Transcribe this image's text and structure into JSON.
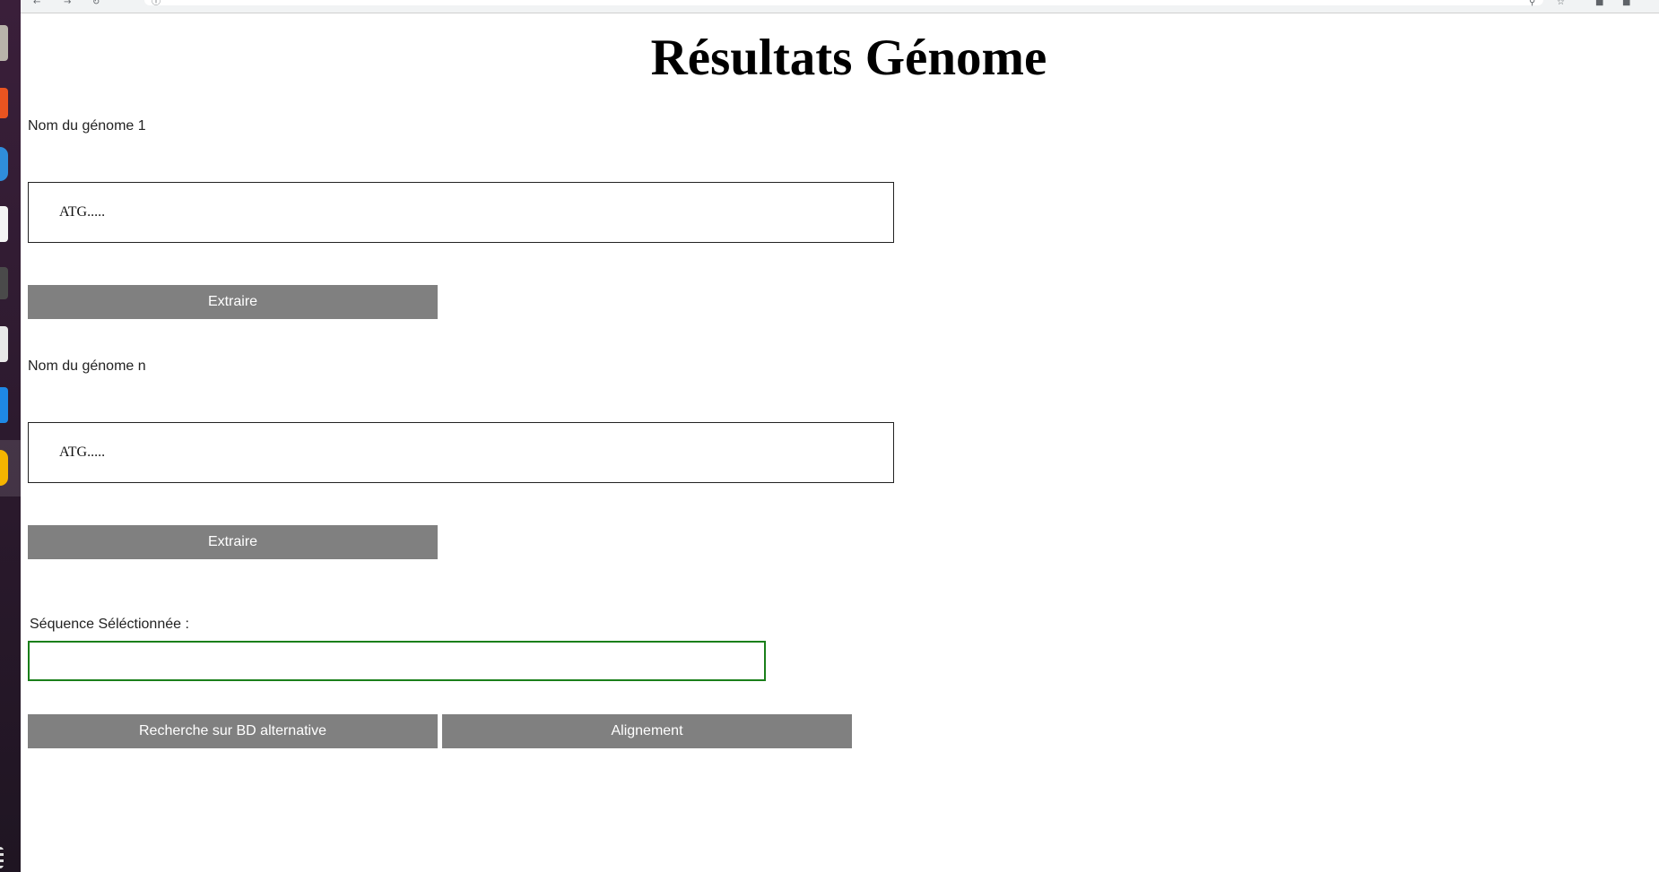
{
  "page": {
    "title": "Résultats Génome"
  },
  "genomes": [
    {
      "name_label": "Nom du génome 1",
      "sequence": "ATG.....",
      "extract_label": "Extraire"
    },
    {
      "name_label": "Nom du génome n",
      "sequence": "ATG.....",
      "extract_label": "Extraire"
    }
  ],
  "selection": {
    "label": "Séquence Séléctionnée :",
    "value": ""
  },
  "actions": {
    "alt_search_label": "Recherche sur BD alternative",
    "alignment_label": "Alignement"
  },
  "colors": {
    "button_bg": "#808080",
    "button_text": "#ffffff",
    "selection_border": "#1a7f1a"
  }
}
